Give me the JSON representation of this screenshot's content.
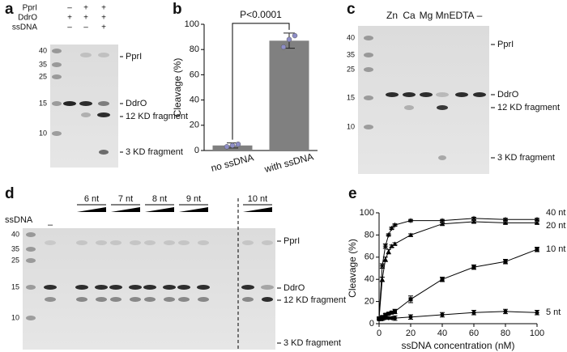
{
  "panels": {
    "a": {
      "label": "a",
      "conditions": [
        {
          "name": "PprI",
          "lanes": [
            "–",
            "+",
            "+"
          ]
        },
        {
          "name": "DdrO",
          "lanes": [
            "+",
            "+",
            "+"
          ]
        },
        {
          "name": "ssDNA",
          "lanes": [
            "–",
            "–",
            "+"
          ]
        }
      ],
      "markers": [
        40,
        35,
        25,
        15,
        10
      ],
      "bands": [
        "PprI",
        "DdrO",
        "12 KD fragment",
        "3 KD fragment"
      ]
    },
    "c": {
      "label": "c",
      "lanes": [
        "Zn",
        "Ca",
        "Mg",
        "Mn",
        "EDTA",
        "–"
      ],
      "markers": [
        40,
        35,
        25,
        15,
        10
      ],
      "bands": [
        "PprI",
        "DdrO",
        "12 KD fragment",
        "3 KD fragment"
      ]
    },
    "d": {
      "label": "d",
      "row_label": "ssDNA",
      "control_lane": "–",
      "groups": [
        "6 nt",
        "7 nt",
        "8 nt",
        "9 nt",
        "10 nt"
      ],
      "markers": [
        40,
        35,
        25,
        15,
        10
      ],
      "bands": [
        "PprI",
        "DdrO",
        "12 KD fragment",
        "3 KD fragment"
      ]
    }
  },
  "chart_data": [
    {
      "type": "bar",
      "panel_label": "b",
      "ylabel": "Cleavage (%)",
      "annotation": "P<0.0001",
      "categories": [
        "no ssDNA",
        "with ssDNA"
      ],
      "values": [
        4,
        87
      ],
      "errors": [
        2,
        6
      ],
      "points": [
        [
          3,
          4,
          5
        ],
        [
          82,
          88,
          91
        ]
      ],
      "color": "#808080",
      "point_color": "#8e8ec8",
      "ylim": [
        0,
        100
      ],
      "yticks": [
        0,
        20,
        40,
        60,
        80,
        100
      ]
    },
    {
      "type": "line",
      "panel_label": "e",
      "xlabel": "ssDNA concentration (nM)",
      "ylabel": "Cleavage (%)",
      "x": [
        0,
        2,
        4,
        6,
        8,
        10,
        20,
        40,
        60,
        80,
        100
      ],
      "series": [
        {
          "name": "40 nt",
          "color": "#000000",
          "marker": "star",
          "values": [
            5,
            52,
            70,
            80,
            86,
            89,
            93,
            93,
            95,
            94,
            94
          ],
          "errors": [
            1,
            2,
            2,
            1,
            1,
            1,
            1,
            1,
            1,
            1,
            1
          ]
        },
        {
          "name": "20 nt",
          "color": "#000000",
          "marker": "triangle",
          "values": [
            5,
            40,
            58,
            65,
            70,
            72,
            80,
            90,
            92,
            91,
            91
          ],
          "errors": [
            1,
            2,
            2,
            2,
            1,
            1,
            1,
            1,
            1,
            1,
            1
          ]
        },
        {
          "name": "10 nt",
          "color": "#000000",
          "marker": "square",
          "values": [
            4,
            6,
            8,
            9,
            10,
            11,
            22,
            40,
            51,
            56,
            67
          ],
          "errors": [
            0,
            1,
            1,
            1,
            1,
            2,
            3,
            2,
            2,
            2,
            2
          ]
        },
        {
          "name": "5 nt",
          "color": "#000000",
          "marker": "circle",
          "values": [
            4,
            4,
            5,
            5,
            5,
            5,
            6,
            8,
            10,
            11,
            10
          ],
          "errors": [
            0,
            1,
            1,
            1,
            1,
            2,
            2,
            2,
            2,
            2,
            2
          ]
        }
      ],
      "xlim": [
        0,
        100
      ],
      "xticks": [
        0,
        20,
        40,
        60,
        80,
        100
      ],
      "ylim": [
        0,
        100
      ],
      "yticks": [
        0,
        20,
        40,
        60,
        80,
        100
      ]
    }
  ]
}
